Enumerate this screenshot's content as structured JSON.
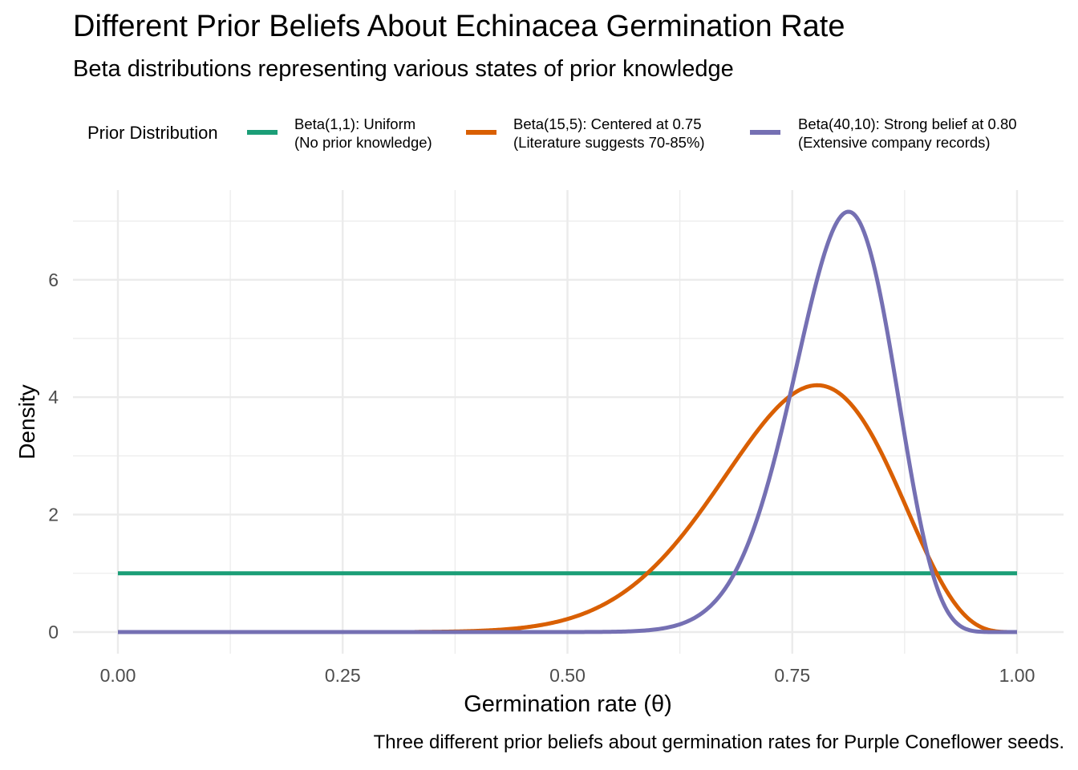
{
  "chart_data": {
    "type": "line",
    "title": "Different Prior Beliefs About Echinacea Germination Rate",
    "subtitle": "Beta distributions representing various states of prior knowledge",
    "xlabel": "Germination rate (θ)",
    "ylabel": "Density",
    "caption": "Three different prior beliefs about germination rates for Purple Coneflower seeds.",
    "xlim": [
      0,
      1
    ],
    "ylim": [
      -0.36,
      7.5
    ],
    "x_ticks": [
      0,
      0.25,
      0.5,
      0.75,
      1
    ],
    "x_tick_labels": [
      "0.00",
      "0.25",
      "0.50",
      "0.75",
      "1.00"
    ],
    "y_ticks": [
      0,
      2,
      4,
      6
    ],
    "y_tick_labels": [
      "0",
      "2",
      "4",
      "6"
    ],
    "grid": true,
    "legend": {
      "title": "Prior Distribution",
      "position": "top",
      "entries": [
        {
          "label_line1": "Beta(1,1): Uniform",
          "label_line2": "(No prior knowledge)",
          "color": "#1B9E77"
        },
        {
          "label_line1": "Beta(15,5): Centered at 0.75",
          "label_line2": "(Literature suggests 70-85%)",
          "color": "#D95F02"
        },
        {
          "label_line1": "Beta(40,10): Strong belief at 0.80",
          "label_line2": "(Extensive company records)",
          "color": "#7570B3"
        }
      ]
    },
    "series": [
      {
        "name": "Beta(1,1): Uniform (No prior knowledge)",
        "alpha": 1,
        "beta": 1,
        "color": "#1B9E77",
        "x_start": 0,
        "x_end": 1,
        "peak": {
          "x": 0.5,
          "y": 1.0
        }
      },
      {
        "name": "Beta(15,5): Centered at 0.75 (Literature suggests 70-85%)",
        "alpha": 15,
        "beta": 5,
        "color": "#D95F02",
        "x_start": 0.33,
        "x_end": 1,
        "peak": {
          "x": 0.778,
          "y": 4.2
        }
      },
      {
        "name": "Beta(40,10): Strong belief at 0.80 (Extensive company records)",
        "alpha": 40,
        "beta": 10,
        "color": "#7570B3",
        "x_start": 0,
        "x_end": 1,
        "peak": {
          "x": 0.796,
          "y": 7.15
        }
      }
    ]
  }
}
